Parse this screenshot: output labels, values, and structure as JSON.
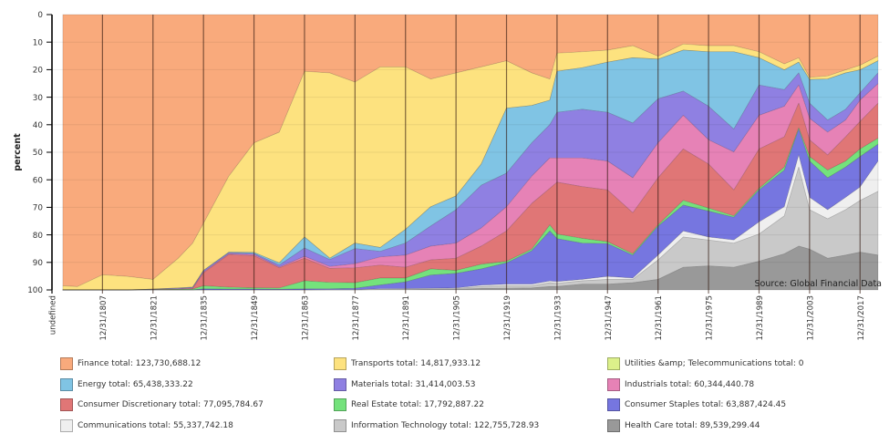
{
  "chart_data": {
    "type": "area",
    "stacked": true,
    "title": "",
    "xlabel": "",
    "ylabel": "percent",
    "ylim": [
      0,
      100
    ],
    "y_reversed": true,
    "y_ticks": [
      "0",
      "10",
      "20",
      "30",
      "40",
      "50",
      "60",
      "70",
      "80",
      "90",
      "100"
    ],
    "xlim": [
      1793,
      2023
    ],
    "x_ticks": [
      {
        "label": "undefined",
        "year": 1793
      },
      {
        "label": "12/31/1807",
        "year": 1807
      },
      {
        "label": "12/31/1821",
        "year": 1821
      },
      {
        "label": "12/31/1835",
        "year": 1835
      },
      {
        "label": "12/31/1849",
        "year": 1849
      },
      {
        "label": "12/31/1863",
        "year": 1863
      },
      {
        "label": "12/31/1877",
        "year": 1877
      },
      {
        "label": "12/31/1891",
        "year": 1891
      },
      {
        "label": "12/31/1905",
        "year": 1905
      },
      {
        "label": "12/31/1919",
        "year": 1919
      },
      {
        "label": "12/31/1933",
        "year": 1933
      },
      {
        "label": "12/31/1947",
        "year": 1947
      },
      {
        "label": "12/31/1961",
        "year": 1961
      },
      {
        "label": "12/31/1975",
        "year": 1975
      },
      {
        "label": "12/31/1989",
        "year": 1989
      },
      {
        "label": "12/31/2003",
        "year": 2003
      },
      {
        "label": "12/31/2017",
        "year": 2017
      }
    ],
    "grid": true,
    "legend_position": "bottom",
    "annotation": "Source: Global Financial Data",
    "x": [
      1796,
      1800,
      1807,
      1814,
      1821,
      1828,
      1832,
      1835,
      1842,
      1849,
      1856,
      1863,
      1870,
      1877,
      1884,
      1891,
      1898,
      1905,
      1912,
      1919,
      1926,
      1931,
      1933,
      1940,
      1947,
      1954,
      1961,
      1968,
      1975,
      1982,
      1989,
      1996,
      2000,
      2003,
      2008,
      2013,
      2017,
      2022
    ],
    "series": [
      {
        "name": "Finance",
        "total": 123730688.12,
        "color": "#f9aa7c",
        "values": [
          98.5,
          98.8,
          94.5,
          95.1,
          96.2,
          88.5,
          83.0,
          75.8,
          58.7,
          46.6,
          42.7,
          20.6,
          21.2,
          24.5,
          19.0,
          19.0,
          23.4,
          21.2,
          19.0,
          16.8,
          21.2,
          23.4,
          14.0,
          13.5,
          12.9,
          11.3,
          15.1,
          10.7,
          11.3,
          11.3,
          13.5,
          17.9,
          15.7,
          22.8,
          22.3,
          20.1,
          18.4,
          15.1
        ]
      },
      {
        "name": "Transports",
        "total": 14817933.12,
        "color": "#fde27f",
        "values": [
          1.5,
          1.2,
          5.5,
          4.9,
          3.5,
          10.8,
          16.0,
          17.1,
          27.6,
          39.8,
          47.5,
          60.2,
          67.3,
          58.5,
          65.6,
          59.0,
          46.4,
          44.7,
          35.3,
          17.2,
          11.8,
          7.7,
          6.6,
          5.8,
          4.4,
          4.4,
          1.1,
          2.2,
          2.2,
          2.2,
          2.2,
          2.2,
          1.6,
          0.8,
          1.1,
          1.1,
          1.7,
          1.7
        ]
      },
      {
        "name": "Utilities &amp; Telecommunications",
        "total": 0,
        "color": "#dcf08a",
        "values": [
          0,
          0,
          0,
          0,
          0,
          0,
          0,
          0,
          0,
          0,
          0,
          0,
          0,
          0,
          0,
          0,
          0,
          0,
          0,
          0,
          0,
          0,
          0,
          0,
          0,
          0,
          0,
          0,
          0,
          0,
          0,
          0,
          0,
          0,
          0,
          0,
          0,
          0
        ]
      },
      {
        "name": "Energy",
        "total": 65438333.22,
        "color": "#80c4e4",
        "values": [
          0,
          0,
          0,
          0,
          0,
          0.1,
          0.1,
          0.1,
          0.2,
          0.4,
          0.8,
          4.0,
          0.5,
          2.0,
          1.4,
          5.0,
          7.0,
          5.0,
          7.7,
          23.6,
          13.6,
          8.9,
          14.9,
          15.1,
          18.2,
          23.7,
          14.4,
          14.9,
          19.8,
          28.1,
          9.9,
          7.2,
          3.9,
          8.6,
          14.9,
          13.2,
          8.3,
          4.4
        ]
      },
      {
        "name": "Materials",
        "total": 31414003.53,
        "color": "#8f80e2",
        "values": [
          0,
          0,
          0,
          0,
          0.1,
          0.2,
          0.2,
          0.5,
          0.4,
          0.4,
          0.7,
          3.0,
          2.5,
          5.5,
          2.0,
          4.4,
          7.3,
          12.1,
          15.5,
          12.2,
          12.1,
          12.1,
          16.6,
          17.7,
          17.7,
          19.9,
          16.0,
          8.8,
          12.2,
          8.3,
          11.0,
          6.0,
          4.4,
          5.5,
          4.4,
          3.9,
          2.7,
          3.9
        ]
      },
      {
        "name": "Industrials",
        "total": 60344440.78,
        "color": "#e682b6",
        "values": [
          0,
          0,
          0,
          0,
          0,
          0.1,
          0.2,
          0.3,
          0.3,
          0.4,
          0.3,
          0.7,
          0.7,
          1.5,
          3.0,
          4.4,
          5.0,
          5.5,
          6.6,
          8.8,
          9.9,
          11.0,
          8.8,
          10.4,
          10.5,
          12.7,
          12.7,
          12.2,
          8.8,
          13.8,
          12.2,
          11.1,
          6.6,
          7.8,
          8.3,
          6.1,
          7.7,
          7.1
        ]
      },
      {
        "name": "Consumer Discretionary",
        "total": 77095784.67,
        "color": "#e07676",
        "values": [
          0,
          0,
          0,
          0,
          0.1,
          0.1,
          0.2,
          4.7,
          11.8,
          11.6,
          7.3,
          8.2,
          5.1,
          5.4,
          4.7,
          3.9,
          3.3,
          4.4,
          6.6,
          11.0,
          16.6,
          13.3,
          18.8,
          18.8,
          18.8,
          14.9,
          17.1,
          18.7,
          16.0,
          9.4,
          14.3,
          11.0,
          8.9,
          6.1,
          5.5,
          8.8,
          10.0,
          12.7
        ]
      },
      {
        "name": "Real Estate",
        "total": 17792887.22,
        "color": "#74e27c",
        "values": [
          0,
          0,
          0,
          0,
          0.1,
          0.2,
          0.3,
          1.1,
          0.7,
          0.5,
          0.5,
          2.9,
          2.3,
          2.0,
          2.5,
          1.4,
          2.2,
          1.1,
          1.7,
          0.6,
          0.6,
          2.2,
          1.7,
          1.7,
          0.7,
          0.5,
          0.5,
          1.7,
          1.1,
          0.5,
          0.6,
          1.1,
          0.5,
          1.6,
          2.8,
          2.2,
          2.8,
          2.2
        ]
      },
      {
        "name": "Consumer Staples",
        "total": 63887424.45,
        "color": "#7676e0",
        "values": [
          0,
          0,
          0,
          0,
          0,
          0,
          0,
          0.4,
          0.3,
          0.3,
          0.2,
          0.4,
          0.3,
          0.5,
          1.4,
          2.4,
          4.8,
          5.3,
          5.9,
          7.7,
          12.1,
          18.2,
          15.6,
          13.2,
          11.9,
          8.3,
          10.5,
          9.4,
          9.4,
          8.3,
          11.6,
          13.3,
          9.4,
          13.2,
          11.6,
          11.0,
          11.0,
          6.1
        ]
      },
      {
        "name": "Communications",
        "total": 55337742.18,
        "color": "#efefef",
        "values": [
          0,
          0,
          0,
          0,
          0,
          0,
          0,
          0,
          0,
          0,
          0,
          0,
          0.1,
          0.1,
          0.2,
          0.2,
          0.2,
          0.2,
          0.5,
          0.6,
          0.6,
          0.6,
          0.6,
          0.5,
          1.1,
          0.5,
          1.7,
          2.2,
          1.1,
          1.1,
          4.4,
          3.3,
          4.4,
          4.5,
          3.3,
          4.5,
          4.9,
          11.0
        ]
      },
      {
        "name": "Information Technology",
        "total": 122755728.93,
        "color": "#c9c9c9",
        "values": [
          0,
          0,
          0,
          0,
          0,
          0,
          0,
          0,
          0,
          0,
          0,
          0,
          0,
          0,
          0.1,
          0.2,
          0.2,
          0.3,
          0.7,
          0.9,
          0.8,
          1.4,
          1.2,
          1.2,
          1.7,
          1.2,
          7.1,
          11.0,
          9.4,
          8.8,
          9.9,
          13.8,
          28.7,
          14.3,
          14.3,
          16.5,
          18.8,
          23.2
        ]
      },
      {
        "name": "Health Care",
        "total": 89539299.44,
        "color": "#999999",
        "values": [
          0,
          0,
          0,
          0,
          0,
          0,
          0,
          0,
          0,
          0,
          0,
          0,
          0,
          0,
          0.1,
          0.1,
          0.2,
          0.2,
          0.5,
          0.6,
          0.7,
          1.2,
          1.2,
          2.1,
          2.1,
          2.6,
          3.8,
          8.2,
          8.7,
          8.2,
          10.4,
          13.1,
          15.9,
          14.8,
          11.5,
          12.6,
          13.7,
          12.6
        ]
      }
    ]
  },
  "legend": {
    "items": [
      {
        "label": "Finance total: 123,730,688.12"
      },
      {
        "label": "Transports total: 14,817,933.12"
      },
      {
        "label": "Utilities &amp; Telecommunications total: 0"
      },
      {
        "label": "Energy total: 65,438,333.22"
      },
      {
        "label": "Materials total: 31,414,003.53"
      },
      {
        "label": "Industrials total: 60,344,440.78"
      },
      {
        "label": "Consumer Discretionary total: 77,095,784.67"
      },
      {
        "label": "Real Estate total: 17,792,887.22"
      },
      {
        "label": "Consumer Staples total: 63,887,424.45"
      },
      {
        "label": "Communications total: 55,337,742.18"
      },
      {
        "label": "Information Technology total: 122,755,728.93"
      },
      {
        "label": "Health Care total: 89,539,299.44"
      }
    ]
  }
}
